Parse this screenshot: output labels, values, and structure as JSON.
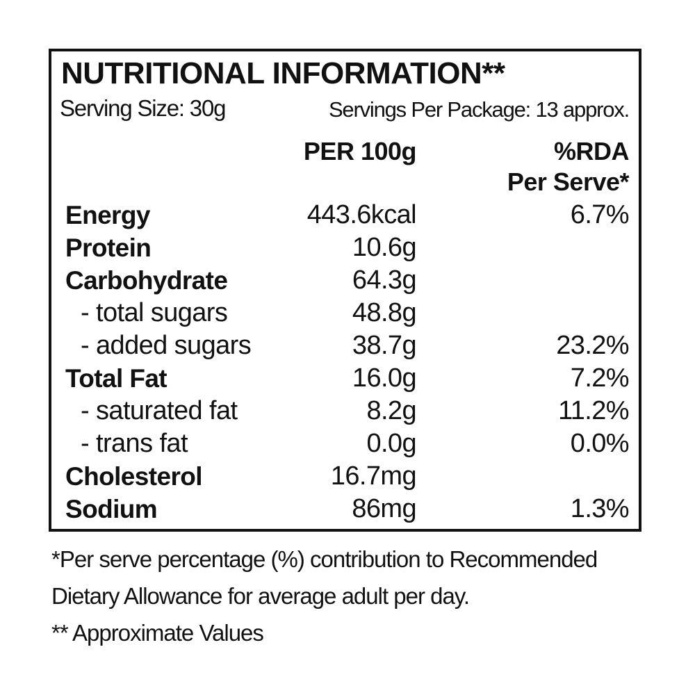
{
  "label": {
    "title": "NUTRITIONAL INFORMATION**",
    "serving_size": "Serving Size: 30g",
    "servings_per_package": "Servings Per Package: 13 approx.",
    "col_per_100g": "PER 100g",
    "col_rda_line1": "%RDA",
    "col_rda_line2": "Per Serve*",
    "rows": [
      {
        "name": "Energy",
        "per100": "443.6kcal",
        "rda": "6.7%"
      },
      {
        "name": "Protein",
        "per100": "10.6g",
        "rda": ""
      },
      {
        "name": "Carbohydrate",
        "per100": "64.3g",
        "rda": ""
      },
      {
        "name": "- total sugars",
        "per100": "48.8g",
        "rda": ""
      },
      {
        "name": "- added sugars",
        "per100": "38.7g",
        "rda": "23.2%"
      },
      {
        "name": "Total Fat",
        "per100": "16.0g",
        "rda": "7.2%"
      },
      {
        "name": "- saturated fat",
        "per100": "8.2g",
        "rda": "11.2%"
      },
      {
        "name": "- trans fat",
        "per100": "0.0g",
        "rda": "0.0%"
      },
      {
        "name": "Cholesterol",
        "per100": "16.7mg",
        "rda": ""
      },
      {
        "name": "Sodium",
        "per100": "86mg",
        "rda": "1.3%"
      }
    ]
  },
  "footnotes": {
    "line1": "*Per serve percentage (%) contribution to Recommended",
    "line2": "Dietary Allowance for average adult per day.",
    "line3": "** Approximate Values"
  }
}
